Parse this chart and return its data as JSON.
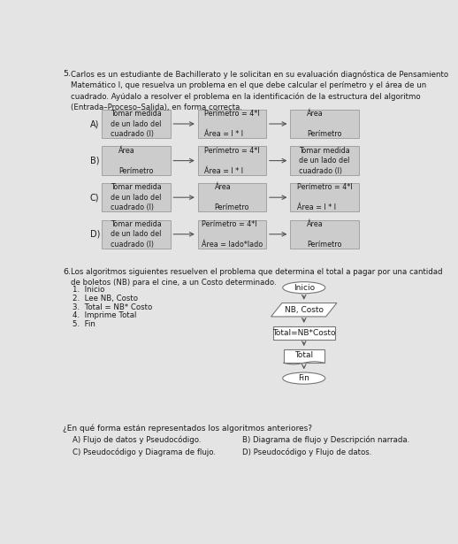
{
  "bg_color": "#e4e4e4",
  "title_number": "5.",
  "title_text": "Carlos es un estudiante de Bachillerato y le solicitan en su evaluación diagnóstica de Pensamiento\nMatemático I, que resuelva un problema en el que debe calcular el perímetro y el área de un\ncuadrado. Ayúdalo a resolver el problema en la identificación de la estructura del algoritmo\n(Entrada–Proceso–Salida), en forma correcta.",
  "options_q5": [
    {
      "label": "A)",
      "boxes": [
        "Tomar medida\nde un lado del\ncuadrado (l)",
        "Perímetro = 4*l\n\nÁrea = l * l",
        "Área\n\nPerímetro"
      ]
    },
    {
      "label": "B)",
      "boxes": [
        "Área\n\nPerímetro",
        "Perímetro = 4*l\n\nÁrea = l * l",
        "Tomar medida\nde un lado del\ncuadrado (l)"
      ]
    },
    {
      "label": "C)",
      "boxes": [
        "Tomar medida\nde un lado del\ncuadrado (l)",
        "Área\n\nPerímetro",
        "Perímetro = 4*l\n\nÁrea = l * l"
      ]
    },
    {
      "label": "D)",
      "boxes": [
        "Tomar medida\nde un lado del\ncuadrado (l)",
        "Perímetro = 4*l\n\nÁrea = lado*lado",
        "Área\n\nPerímetro"
      ]
    }
  ],
  "q6_number": "6.",
  "q6_text": "Los algoritmos siguientes resuelven el problema que determina el total a pagar por una cantidad\nde boletos (NB) para el cine, a un Costo determinado.",
  "pseudocode": [
    "1.  Inicio",
    "2.  Lee NB, Costo",
    "3.  Total = NB* Costo",
    "4.  Imprime Total",
    "5.  Fin"
  ],
  "flowchart_labels": [
    "Inicio",
    "NB, Costo",
    "Total=NB*Costo",
    "Total",
    "Fin"
  ],
  "q6_question": "¿En qué forma están representados los algoritmos anteriores?",
  "q6_options_left": [
    "A) Flujo de datos y Pseudocódigo.",
    "C) Pseudocódigo y Diagrama de flujo."
  ],
  "q6_options_right": [
    "B) Diagrama de flujo y Descripción narrada.",
    "D) Pseudocódigo y Flujo de datos."
  ],
  "box_fill": "#cccccc",
  "box_edge": "#999999",
  "text_color": "#1a1a1a",
  "arrow_color": "#555555",
  "white_fill": "#ffffff"
}
